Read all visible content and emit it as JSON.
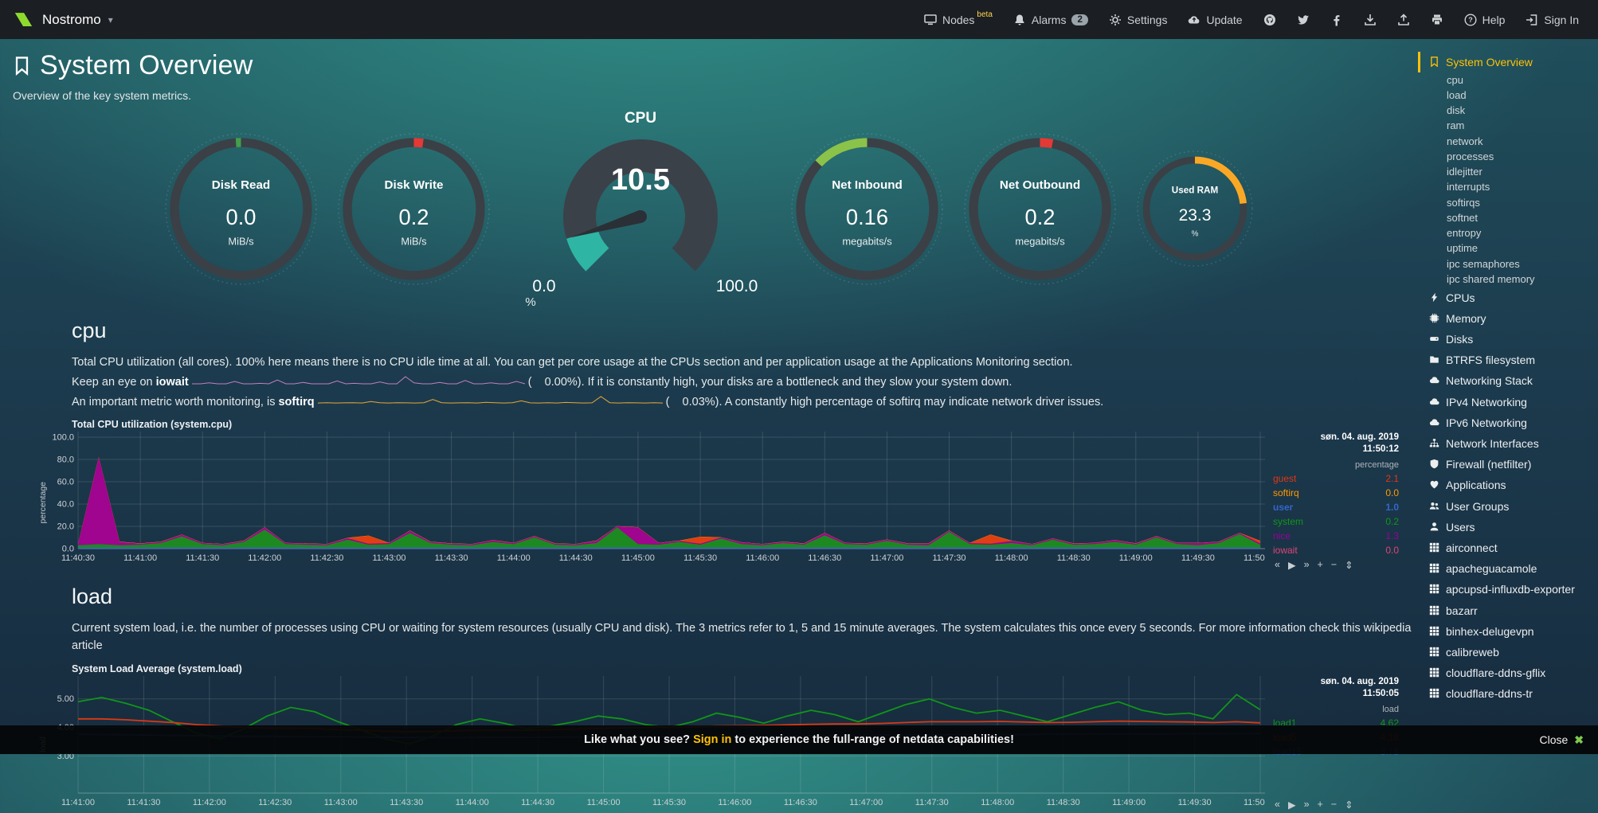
{
  "navbar": {
    "brand": "Nostromo",
    "nodes_label": "Nodes",
    "nodes_beta": "beta",
    "alarms_label": "Alarms",
    "alarms_count": "2",
    "settings_label": "Settings",
    "update_label": "Update",
    "help_label": "Help",
    "signin_label": "Sign In"
  },
  "page": {
    "title": "System Overview",
    "subtitle": "Overview of the key system metrics."
  },
  "gauges": [
    {
      "type": "pie",
      "title": "Disk Read",
      "value": "0.0",
      "unit": "MiB/s",
      "color": "#43a047",
      "fraction": 0.012,
      "direction": -1,
      "size": 195
    },
    {
      "type": "pie",
      "title": "Disk Write",
      "value": "0.2",
      "unit": "MiB/s",
      "color": "#e53935",
      "fraction": 0.022,
      "direction": 1,
      "size": 195
    },
    {
      "type": "meter",
      "title": "CPU",
      "value": "10.5",
      "min": "0.0",
      "max": "100.0",
      "unit": "%",
      "color": "#2fb5a3",
      "fraction": 0.105
    },
    {
      "type": "pie",
      "title": "Net Inbound",
      "value": "0.16",
      "unit": "megabits/s",
      "color": "#8bc34a",
      "fraction": 0.13,
      "direction": -1,
      "size": 195
    },
    {
      "type": "pie",
      "title": "Net Outbound",
      "value": "0.2",
      "unit": "megabits/s",
      "color": "#e53935",
      "fraction": 0.03,
      "direction": 1,
      "size": 195
    },
    {
      "type": "pie",
      "title": "Used RAM",
      "value": "23.3",
      "unit": "%",
      "color": "#f9a825",
      "fraction": 0.233,
      "direction": 1,
      "size": 150
    }
  ],
  "cpu_section": {
    "heading": "cpu",
    "line1": "Total CPU utilization (all cores). 100% here means there is no CPU idle time at all. You can get per core usage at the CPUs section and per application usage at the Applications Monitoring section.",
    "line2_prefix": "Keep an eye on ",
    "line2_metric": "iowait",
    "line2_value": "(    0.00%).",
    "line2_suffix": " If it is constantly high, your disks are a bottleneck and they slow your system down.",
    "line3_prefix": "An important metric worth monitoring, is ",
    "line3_metric": "softirq",
    "line3_value": "(    0.03%).",
    "line3_suffix": " A constantly high percentage of softirq may indicate network driver issues."
  },
  "load_section": {
    "heading": "load",
    "line1": "Current system load, i.e. the number of processes using CPU or waiting for system resources (usually CPU and disk). The 3 metrics refer to 1, 5 and 15 minute averages. The system calculates this once every 5 seconds. For more information check this wikipedia article"
  },
  "sparklines": {
    "iowait": {
      "color": "#bf7fbf",
      "values": [
        0,
        0,
        0.2,
        0,
        0,
        0.5,
        0,
        0,
        0.1,
        0,
        0.8,
        0,
        0,
        0.3,
        0,
        0,
        0,
        0.6,
        0,
        0.1,
        0,
        0,
        0.4,
        0,
        0,
        1.5,
        0.2,
        0,
        0,
        0.3,
        0,
        0,
        0.7,
        0,
        0,
        0.2,
        0,
        0,
        0.5,
        0
      ]
    },
    "softirq": {
      "color": "#e8a838",
      "values": [
        0.2,
        0.3,
        0.2,
        0.25,
        0.3,
        0.2,
        0.6,
        0.3,
        0.2,
        0.3,
        0.25,
        0.2,
        0.3,
        1.2,
        0.3,
        0.2,
        0.25,
        0.3,
        0.2,
        0.4,
        0.3,
        0.2,
        0.3,
        0.8,
        0.25,
        0.2,
        0.3,
        0.2,
        0.35,
        0.3,
        0.2,
        0.25,
        2,
        0.3,
        0.2,
        0.3,
        0.25,
        0.2,
        0.3,
        0.2
      ]
    }
  },
  "toolbox": [
    "«",
    "▶",
    "»",
    "+",
    "−",
    "⇕"
  ],
  "chart_data": [
    {
      "type": "area",
      "stacked": true,
      "title": "Total CPU utilization (system.cpu)",
      "date": "søn. 04. aug. 2019",
      "time": "11:50:12",
      "ylabel": "percentage",
      "legend_header": "percentage",
      "ylim": [
        0,
        105
      ],
      "yticks": [
        "100.0",
        "80.0",
        "60.0",
        "40.0",
        "20.0",
        "0.0"
      ],
      "ytick_vals": [
        100,
        80,
        60,
        40,
        20,
        0
      ],
      "xticks": [
        "11:40:30",
        "11:41:00",
        "11:41:30",
        "11:42:00",
        "11:42:30",
        "11:43:00",
        "11:43:30",
        "11:44:00",
        "11:44:30",
        "11:45:00",
        "11:45:30",
        "11:46:00",
        "11:46:30",
        "11:47:00",
        "11:47:30",
        "11:48:00",
        "11:48:30",
        "11:49:00",
        "11:49:30",
        "11:50:00"
      ],
      "stack_order": [
        "user",
        "system",
        "nice",
        "guest",
        "softirq",
        "iowait"
      ],
      "series": [
        {
          "name": "guest",
          "color": "#DC3912",
          "current": "2.1",
          "values": [
            0,
            0,
            0,
            0,
            0,
            0,
            0,
            0,
            0,
            0,
            0,
            0,
            0,
            0,
            7,
            0,
            0,
            0,
            0,
            0,
            0,
            0,
            0,
            0,
            0,
            0,
            0,
            0,
            0,
            0,
            6,
            0,
            0,
            0,
            0,
            0,
            0,
            0,
            0,
            0,
            0,
            0,
            0,
            0,
            8,
            0,
            0,
            0,
            0,
            0,
            0,
            0,
            0,
            0,
            0,
            0,
            0,
            2.1
          ]
        },
        {
          "name": "softirq",
          "color": "#FF9900",
          "current": "0.0",
          "values": [
            0.2
          ]
        },
        {
          "name": "user",
          "color": "#3366CC",
          "current": "1.0",
          "bold": true,
          "values": [
            1
          ]
        },
        {
          "name": "system",
          "color": "#109618",
          "current": "0.2",
          "values": [
            2,
            3,
            2,
            2.5,
            4,
            10,
            3,
            2,
            5,
            16,
            3,
            2.5,
            2,
            7,
            2.5,
            3,
            13,
            4,
            2.5,
            2,
            5,
            3,
            9,
            2.5,
            2,
            4,
            18,
            3,
            2.5,
            5,
            2.5,
            8,
            3,
            2,
            4,
            2.5,
            11,
            3,
            2.5,
            6,
            2.5,
            2,
            14,
            3,
            2.5,
            4,
            2,
            7,
            2.5,
            3,
            5,
            2.5,
            9,
            3,
            2,
            4,
            12,
            2.5
          ]
        },
        {
          "name": "nice",
          "color": "#990099",
          "current": "1.3",
          "values": [
            1,
            78,
            3,
            1,
            1,
            1.5,
            1,
            1,
            1,
            2,
            1,
            1,
            1,
            1.5,
            1,
            1,
            2,
            1,
            1,
            1,
            1.5,
            1,
            1,
            1,
            1,
            2,
            1,
            15,
            1.5,
            1,
            1,
            1,
            1.5,
            1,
            1,
            1,
            2,
            1,
            1,
            1,
            1,
            1.5,
            1,
            1,
            1,
            2,
            1,
            1,
            1,
            1,
            1.5,
            1,
            1,
            1,
            2,
            1,
            1,
            1.3
          ]
        },
        {
          "name": "iowait",
          "color": "#DD4477",
          "current": "0.0",
          "values": [
            0
          ]
        }
      ]
    },
    {
      "type": "line",
      "stacked": false,
      "title": "System Load Average (system.load)",
      "date": "søn. 04. aug. 2019",
      "time": "11:50:05",
      "ylabel": "load",
      "legend_header": "load",
      "ylim": [
        1.7,
        5.8
      ],
      "yticks": [
        "5.00",
        "4.00",
        "3.00"
      ],
      "ytick_vals": [
        5,
        4,
        3
      ],
      "xticks": [
        "11:41:00",
        "11:41:30",
        "11:42:00",
        "11:42:30",
        "11:43:00",
        "11:43:30",
        "11:44:00",
        "11:44:30",
        "11:45:00",
        "11:45:30",
        "11:46:00",
        "11:46:30",
        "11:47:00",
        "11:47:30",
        "11:48:00",
        "11:48:30",
        "11:49:00",
        "11:49:30",
        "11:50:00"
      ],
      "series": [
        {
          "name": "load1",
          "color": "#109618",
          "current": "4.62",
          "values": [
            4.9,
            5.05,
            4.85,
            4.6,
            4.2,
            3.8,
            3.6,
            3.95,
            4.4,
            4.7,
            4.55,
            4.2,
            3.9,
            3.6,
            3.42,
            3.7,
            4.1,
            4.3,
            4.15,
            3.95,
            4.05,
            4.2,
            4.4,
            4.3,
            4.1,
            4.0,
            4.2,
            4.5,
            4.35,
            4.15,
            4.4,
            4.6,
            4.45,
            4.2,
            4.5,
            4.8,
            5.0,
            4.7,
            4.5,
            4.6,
            4.4,
            4.2,
            4.45,
            4.7,
            4.9,
            4.6,
            4.45,
            4.5,
            4.3,
            5.15,
            4.62
          ]
        },
        {
          "name": "load5",
          "color": "#DC3912",
          "current": "4.16",
          "values": [
            4.3,
            4.3,
            4.27,
            4.22,
            4.17,
            4.1,
            4.05,
            4.0,
            3.98,
            3.98,
            3.96,
            3.92,
            3.9,
            3.87,
            3.85,
            3.86,
            3.88,
            3.9,
            3.9,
            3.9,
            3.92,
            3.94,
            3.97,
            3.99,
            4.0,
            4.0,
            4.02,
            4.05,
            4.06,
            4.07,
            4.09,
            4.11,
            4.12,
            4.12,
            4.14,
            4.17,
            4.2,
            4.2,
            4.2,
            4.21,
            4.19,
            4.17,
            4.18,
            4.2,
            4.22,
            4.21,
            4.2,
            4.19,
            4.17,
            4.2,
            4.16
          ]
        },
        {
          "name": "load15",
          "color": "#3366CC",
          "current": "3.78",
          "values": [
            3.76,
            3.75,
            3.74,
            3.73,
            3.72,
            3.71,
            3.7,
            3.69,
            3.69,
            3.68,
            3.67,
            3.67,
            3.66,
            3.65,
            3.65,
            3.64,
            3.64,
            3.65,
            3.65,
            3.65,
            3.66,
            3.66,
            3.67,
            3.67,
            3.68,
            3.68,
            3.69,
            3.69,
            3.7,
            3.7,
            3.71,
            3.71,
            3.72,
            3.72,
            3.73,
            3.73,
            3.74,
            3.74,
            3.75,
            3.75,
            3.75,
            3.76,
            3.76,
            3.76,
            3.77,
            3.77,
            3.77,
            3.78,
            3.78,
            3.78,
            3.78
          ]
        }
      ]
    }
  ],
  "sidebar": {
    "items": [
      {
        "label": "System Overview",
        "icon": "bookmark-icon",
        "level": 0,
        "active": true
      },
      {
        "label": "cpu",
        "level": 1
      },
      {
        "label": "load",
        "level": 1
      },
      {
        "label": "disk",
        "level": 1
      },
      {
        "label": "ram",
        "level": 1
      },
      {
        "label": "network",
        "level": 1
      },
      {
        "label": "processes",
        "level": 1
      },
      {
        "label": "idlejitter",
        "level": 1
      },
      {
        "label": "interrupts",
        "level": 1
      },
      {
        "label": "softirqs",
        "level": 1
      },
      {
        "label": "softnet",
        "level": 1
      },
      {
        "label": "entropy",
        "level": 1
      },
      {
        "label": "uptime",
        "level": 1
      },
      {
        "label": "ipc semaphores",
        "level": 1
      },
      {
        "label": "ipc shared memory",
        "level": 1
      },
      {
        "label": "CPUs",
        "icon": "bolt-icon",
        "level": 0
      },
      {
        "label": "Memory",
        "icon": "memory-icon",
        "level": 0
      },
      {
        "label": "Disks",
        "icon": "disk-icon",
        "level": 0
      },
      {
        "label": "BTRFS filesystem",
        "icon": "folder-icon",
        "level": 0
      },
      {
        "label": "Networking Stack",
        "icon": "cloud-icon",
        "level": 0
      },
      {
        "label": "IPv4 Networking",
        "icon": "cloud-icon",
        "level": 0
      },
      {
        "label": "IPv6 Networking",
        "icon": "cloud-icon",
        "level": 0
      },
      {
        "label": "Network Interfaces",
        "icon": "sitemap-icon",
        "level": 0
      },
      {
        "label": "Firewall (netfilter)",
        "icon": "shield-icon",
        "level": 0
      },
      {
        "label": "Applications",
        "icon": "heart-icon",
        "level": 0
      },
      {
        "label": "User Groups",
        "icon": "users-icon",
        "level": 0
      },
      {
        "label": "Users",
        "icon": "user-icon",
        "level": 0
      },
      {
        "label": "airconnect",
        "icon": "grid-icon",
        "level": 0
      },
      {
        "label": "apacheguacamole",
        "icon": "grid-icon",
        "level": 0
      },
      {
        "label": "apcupsd-influxdb-exporter",
        "icon": "grid-icon",
        "level": 0
      },
      {
        "label": "bazarr",
        "icon": "grid-icon",
        "level": 0
      },
      {
        "label": "binhex-delugevpn",
        "icon": "grid-icon",
        "level": 0
      },
      {
        "label": "calibreweb",
        "icon": "grid-icon",
        "level": 0
      },
      {
        "label": "cloudflare-ddns-gflix",
        "icon": "grid-icon",
        "level": 0
      },
      {
        "label": "cloudflare-ddns-tr",
        "icon": "grid-icon",
        "level": 0
      }
    ]
  },
  "footer": {
    "message_prefix": "Like what you see? ",
    "signin_link": "Sign in",
    "message_suffix": " to experience the full-range of netdata capabilities!",
    "close_label": "Close"
  }
}
